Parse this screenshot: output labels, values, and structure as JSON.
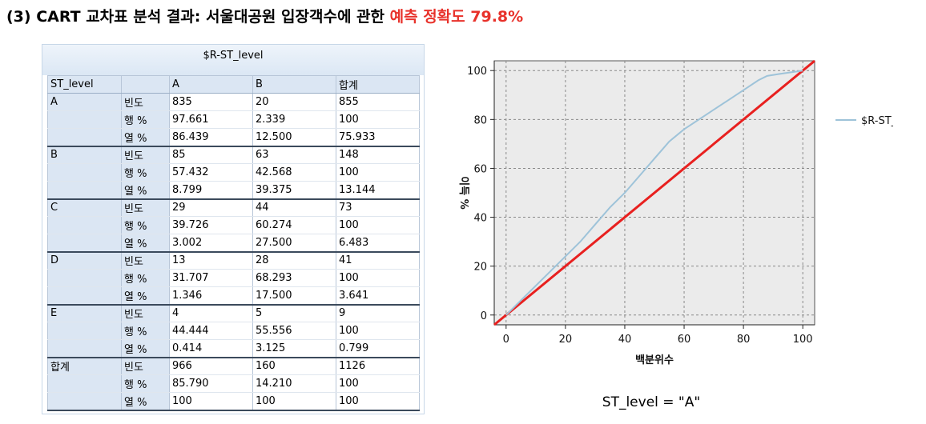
{
  "title": {
    "main": "(3) CART 교차표 분석 결과: 서울대공원 입장객수에 관한 ",
    "accent": "예측 정확도 79.8%"
  },
  "table": {
    "column_variable": "$R-ST_level",
    "row_variable": "ST_level",
    "columns": [
      "A",
      "B",
      "합계"
    ],
    "groups": [
      {
        "label": "A",
        "rows": [
          {
            "stat": "빈도",
            "values": [
              "835",
              "20",
              "855"
            ]
          },
          {
            "stat": "행 %",
            "values": [
              "97.661",
              "2.339",
              "100"
            ]
          },
          {
            "stat": "열 %",
            "values": [
              "86.439",
              "12.500",
              "75.933"
            ]
          }
        ]
      },
      {
        "label": "B",
        "rows": [
          {
            "stat": "빈도",
            "values": [
              "85",
              "63",
              "148"
            ]
          },
          {
            "stat": "행 %",
            "values": [
              "57.432",
              "42.568",
              "100"
            ]
          },
          {
            "stat": "열 %",
            "values": [
              "8.799",
              "39.375",
              "13.144"
            ]
          }
        ]
      },
      {
        "label": "C",
        "rows": [
          {
            "stat": "빈도",
            "values": [
              "29",
              "44",
              "73"
            ]
          },
          {
            "stat": "행 %",
            "values": [
              "39.726",
              "60.274",
              "100"
            ]
          },
          {
            "stat": "열 %",
            "values": [
              "3.002",
              "27.500",
              "6.483"
            ]
          }
        ]
      },
      {
        "label": "D",
        "rows": [
          {
            "stat": "빈도",
            "values": [
              "13",
              "28",
              "41"
            ]
          },
          {
            "stat": "행 %",
            "values": [
              "31.707",
              "68.293",
              "100"
            ]
          },
          {
            "stat": "열 %",
            "values": [
              "1.346",
              "17.500",
              "3.641"
            ]
          }
        ]
      },
      {
        "label": "E",
        "rows": [
          {
            "stat": "빈도",
            "values": [
              "4",
              "5",
              "9"
            ]
          },
          {
            "stat": "행 %",
            "values": [
              "44.444",
              "55.556",
              "100"
            ]
          },
          {
            "stat": "열 %",
            "values": [
              "0.414",
              "3.125",
              "0.799"
            ]
          }
        ]
      },
      {
        "label": "합계",
        "rows": [
          {
            "stat": "빈도",
            "values": [
              "966",
              "160",
              "1126"
            ]
          },
          {
            "stat": "행 %",
            "values": [
              "85.790",
              "14.210",
              "100"
            ]
          },
          {
            "stat": "열 %",
            "values": [
              "100",
              "100",
              "100"
            ]
          }
        ]
      }
    ]
  },
  "chart_data": {
    "type": "line",
    "xlabel": "백분위수",
    "ylabel": "이득 %",
    "caption": "ST_level = \"A\"",
    "xlim": [
      -4,
      104
    ],
    "ylim": [
      -4,
      104
    ],
    "xticks": [
      0,
      20,
      40,
      60,
      80,
      100
    ],
    "yticks": [
      0,
      20,
      40,
      60,
      80,
      100
    ],
    "grid": true,
    "legend_position": "right",
    "colors": {
      "gain": "#9ec3d9",
      "baseline": "#e8201f",
      "plot_bg": "#ebebeb"
    },
    "series": [
      {
        "name": "$R-ST_level",
        "x": [
          0,
          5,
          10,
          15,
          20,
          25,
          30,
          35,
          40,
          45,
          50,
          55,
          60,
          65,
          70,
          75,
          80,
          85,
          88,
          92,
          96,
          100
        ],
        "y": [
          0,
          6,
          12,
          18,
          24,
          30,
          37,
          44,
          50,
          57,
          64,
          71,
          76,
          80,
          84,
          88,
          92,
          96,
          97.8,
          98.6,
          99.3,
          100
        ]
      },
      {
        "name": "",
        "x": [
          -4,
          104
        ],
        "y": [
          -4,
          104
        ]
      }
    ]
  }
}
